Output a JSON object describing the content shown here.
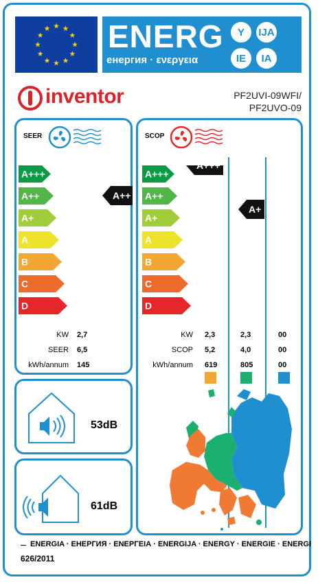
{
  "header": {
    "energy_word": "ENERG",
    "energy_sub": "енергия · ενεργεια",
    "lang_codes": [
      "Y",
      "IJA",
      "IE",
      "IA"
    ]
  },
  "brand": {
    "name": "inventor",
    "model_line1": "PF2UVI-09WFI/",
    "model_line2": "PF2UVO-09"
  },
  "colors": {
    "accent": "#1f8fd0",
    "eu_blue": "#0e3f9e",
    "eu_star": "#f7d117",
    "brand_red": "#d9242a",
    "class_colors": [
      "#0c9a47",
      "#52b548",
      "#a2cd3a",
      "#ede32a",
      "#f2a634",
      "#ec6b2d",
      "#e5262a"
    ]
  },
  "seer": {
    "label": "SEER",
    "icon": "fan-cool-icon",
    "classes": [
      "A+++",
      "A++",
      "A+",
      "A",
      "B",
      "C",
      "D"
    ],
    "rating": "A++",
    "rows": [
      {
        "label": "KW",
        "value": "2,7"
      },
      {
        "label": "SEER",
        "value": "6,5"
      },
      {
        "label": "kWh/annum",
        "value": "145"
      }
    ]
  },
  "scop": {
    "label": "SCOP",
    "icon": "fan-heat-icon",
    "classes": [
      "A+++",
      "A++",
      "A+",
      "A",
      "B",
      "C",
      "D"
    ],
    "ratings": [
      "A+++",
      "A+",
      ""
    ],
    "row_labels": [
      "KW",
      "SCOP",
      "kWh/annum"
    ],
    "columns": [
      {
        "values": [
          "2,3",
          "5,2",
          "619"
        ],
        "swatch": "#f2a634"
      },
      {
        "values": [
          "2,3",
          "4,0",
          "805"
        ],
        "swatch": "#1bb070"
      },
      {
        "values": [
          "00",
          "00",
          "00"
        ],
        "swatch": "#1f8fd0"
      }
    ]
  },
  "noise": {
    "indoor": {
      "value": "53dB",
      "icon": "house-speaker-indoor-icon"
    },
    "outdoor": {
      "value": "61dB",
      "icon": "house-speaker-outdoor-icon"
    }
  },
  "map": {
    "icon": "europe-climate-map-icon"
  },
  "footer": {
    "languages": "ENERGIA · ЕНЕРГИЯ · ΕΝΕΡΓΕΙΑ · ENERGIJA · ENERGY · ENERGIE · ENERGI",
    "regulation": "626/2011"
  }
}
